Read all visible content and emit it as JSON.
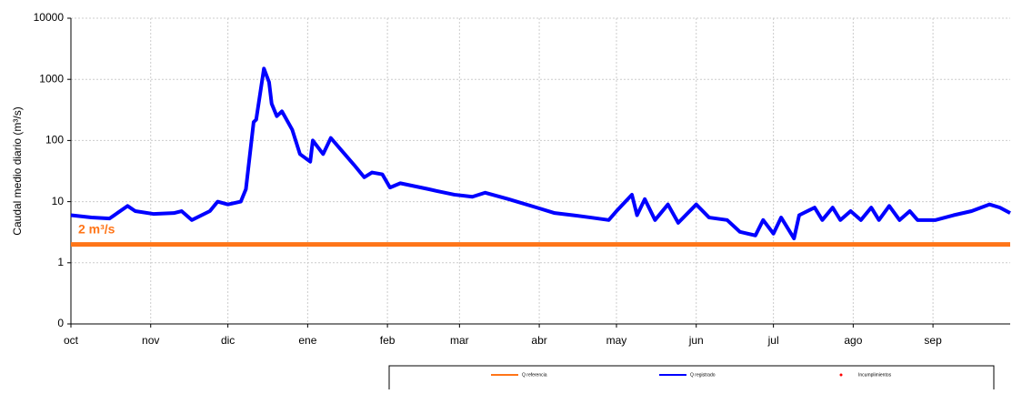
{
  "chart_data": {
    "type": "line",
    "y_label": "Caudal medio diario (m³/s)",
    "log_y": true,
    "grid": true,
    "xlim": [
      0,
      365
    ],
    "xticks": [
      {
        "value": 0,
        "label": "oct"
      },
      {
        "value": 31,
        "label": "nov"
      },
      {
        "value": 61,
        "label": "dic"
      },
      {
        "value": 92,
        "label": "ene"
      },
      {
        "value": 123,
        "label": "feb"
      },
      {
        "value": 151,
        "label": "mar"
      },
      {
        "value": 182,
        "label": "abr"
      },
      {
        "value": 212,
        "label": "may"
      },
      {
        "value": 243,
        "label": "jun"
      },
      {
        "value": 273,
        "label": "jul"
      },
      {
        "value": 304,
        "label": "ago"
      },
      {
        "value": 335,
        "label": "sep"
      }
    ],
    "ylim": [
      0.1,
      10000
    ],
    "yticks": [
      {
        "value": 0.1,
        "label": "0"
      },
      1,
      10,
      100,
      1000,
      10000
    ],
    "annotation": {
      "text": "2 m³/s",
      "value": 2
    },
    "series": [
      {
        "name": "Q referencia",
        "color": "#ff7518",
        "x": [
          0,
          365
        ],
        "values": [
          2,
          2
        ]
      },
      {
        "name": "Q registrado",
        "color": "#0000ff",
        "x": [
          0,
          8,
          15,
          22,
          25,
          32,
          40,
          43,
          47,
          54,
          57,
          61,
          66,
          68,
          71,
          72,
          75,
          77,
          78,
          80,
          82,
          86,
          89,
          93,
          94,
          98,
          101,
          105,
          110,
          114,
          117,
          121,
          124,
          128,
          139,
          142,
          149,
          156,
          161,
          170,
          181,
          188,
          195,
          202,
          209,
          212,
          218,
          220,
          223,
          227,
          232,
          236,
          243,
          248,
          255,
          260,
          266,
          269,
          273,
          276,
          281,
          283,
          289,
          292,
          296,
          299,
          303,
          307,
          311,
          314,
          318,
          322,
          326,
          329,
          336,
          343,
          350,
          357,
          361,
          365
        ],
        "values": [
          6,
          5.5,
          5.3,
          8.5,
          7,
          6.3,
          6.5,
          7,
          5,
          7,
          10,
          9,
          10,
          16,
          200,
          220,
          1500,
          900,
          400,
          250,
          300,
          150,
          60,
          45,
          100,
          60,
          110,
          70,
          40,
          25,
          30,
          28,
          17,
          20,
          16,
          15,
          13,
          12,
          14,
          11,
          8,
          6.5,
          6,
          5.5,
          5,
          7,
          13,
          6,
          11,
          5,
          9,
          4.5,
          9,
          5.5,
          5,
          3.2,
          2.8,
          5,
          3,
          5.5,
          2.5,
          6,
          8,
          5,
          8,
          5,
          7,
          5,
          8,
          5,
          8.5,
          5,
          7,
          5,
          5,
          6,
          7,
          9,
          8,
          6.5
        ]
      },
      {
        "name": "Incumplimientos",
        "color": "#ff0000",
        "x": [],
        "values": []
      }
    ]
  }
}
